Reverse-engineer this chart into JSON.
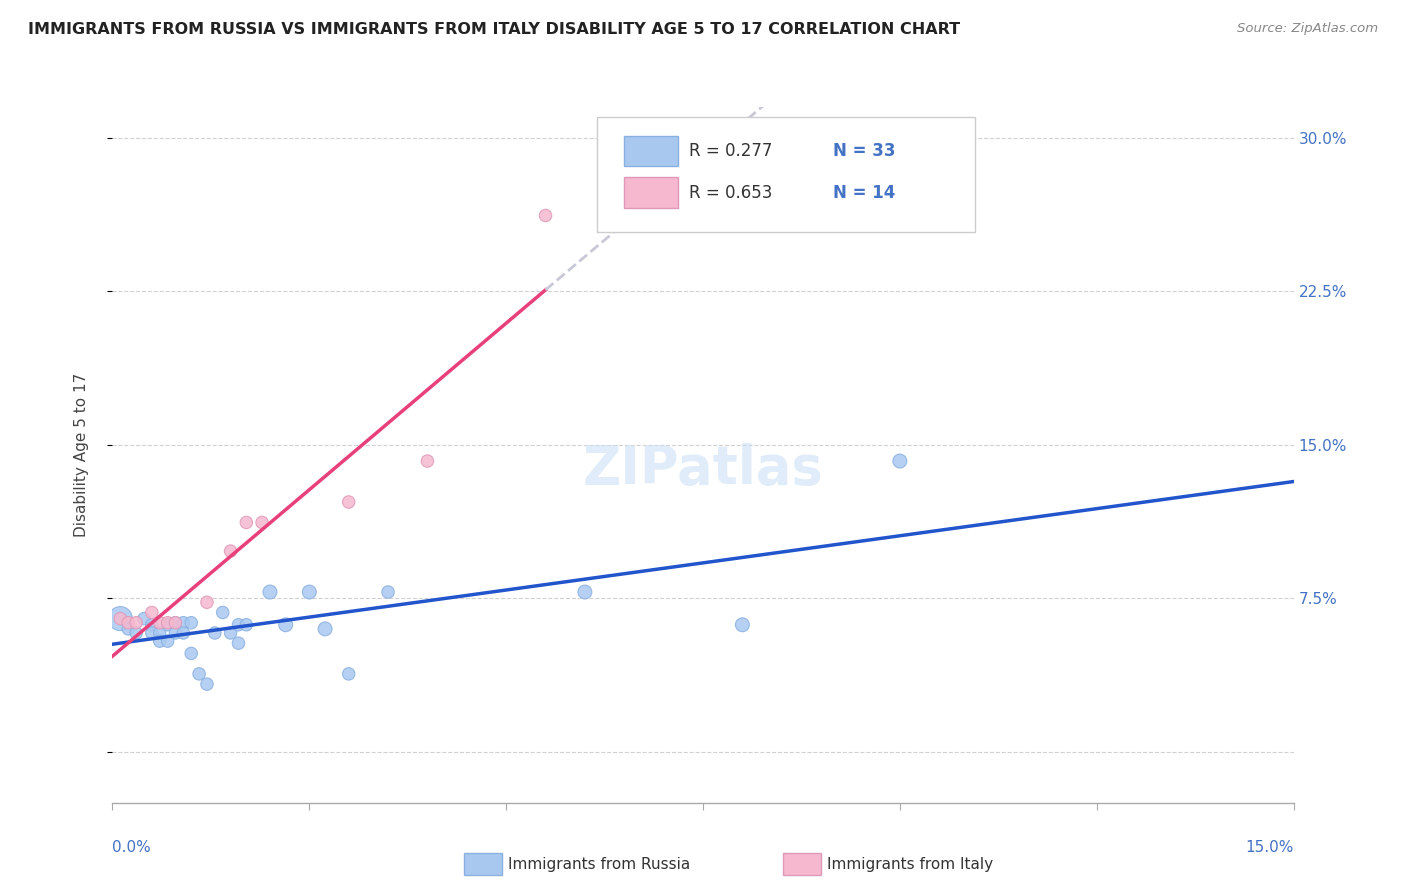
{
  "title": "IMMIGRANTS FROM RUSSIA VS IMMIGRANTS FROM ITALY DISABILITY AGE 5 TO 17 CORRELATION CHART",
  "source": "Source: ZipAtlas.com",
  "ylabel": "Disability Age 5 to 17",
  "yticks": [
    0.0,
    0.075,
    0.15,
    0.225,
    0.3
  ],
  "ytick_labels": [
    "",
    "7.5%",
    "15.0%",
    "22.5%",
    "30.0%"
  ],
  "xlim": [
    0.0,
    0.15
  ],
  "ylim": [
    -0.025,
    0.315
  ],
  "russia_R": 0.277,
  "russia_N": 33,
  "italy_R": 0.653,
  "italy_N": 14,
  "russia_color": "#a8c8f0",
  "italy_color": "#f5b8ce",
  "russia_line_color": "#2255cc",
  "italy_line_color": "#e8407a",
  "trendline_ext_color": "#c8c8d8",
  "watermark": "ZIPatlas",
  "background_color": "#ffffff",
  "russia_x": [
    0.001,
    0.002,
    0.003,
    0.004,
    0.005,
    0.005,
    0.006,
    0.006,
    0.007,
    0.007,
    0.008,
    0.008,
    0.009,
    0.009,
    0.01,
    0.01,
    0.011,
    0.012,
    0.013,
    0.014,
    0.015,
    0.016,
    0.016,
    0.017,
    0.02,
    0.022,
    0.025,
    0.027,
    0.03,
    0.035,
    0.06,
    0.08,
    0.1
  ],
  "russia_y": [
    0.065,
    0.06,
    0.058,
    0.065,
    0.062,
    0.058,
    0.058,
    0.054,
    0.062,
    0.054,
    0.063,
    0.058,
    0.063,
    0.058,
    0.063,
    0.048,
    0.038,
    0.033,
    0.058,
    0.068,
    0.058,
    0.062,
    0.053,
    0.062,
    0.078,
    0.062,
    0.078,
    0.06,
    0.038,
    0.078,
    0.078,
    0.062,
    0.142
  ],
  "russia_size": [
    300,
    80,
    80,
    80,
    80,
    80,
    80,
    80,
    80,
    80,
    80,
    80,
    80,
    80,
    80,
    80,
    80,
    80,
    80,
    80,
    80,
    80,
    80,
    80,
    100,
    100,
    100,
    100,
    80,
    80,
    100,
    100,
    100
  ],
  "italy_x": [
    0.001,
    0.002,
    0.003,
    0.005,
    0.006,
    0.007,
    0.008,
    0.012,
    0.015,
    0.017,
    0.019,
    0.03,
    0.04,
    0.055
  ],
  "italy_y": [
    0.065,
    0.063,
    0.063,
    0.068,
    0.063,
    0.063,
    0.063,
    0.073,
    0.098,
    0.112,
    0.112,
    0.122,
    0.142,
    0.262
  ],
  "italy_size": [
    80,
    80,
    80,
    80,
    80,
    80,
    80,
    80,
    80,
    80,
    80,
    80,
    80,
    80
  ]
}
